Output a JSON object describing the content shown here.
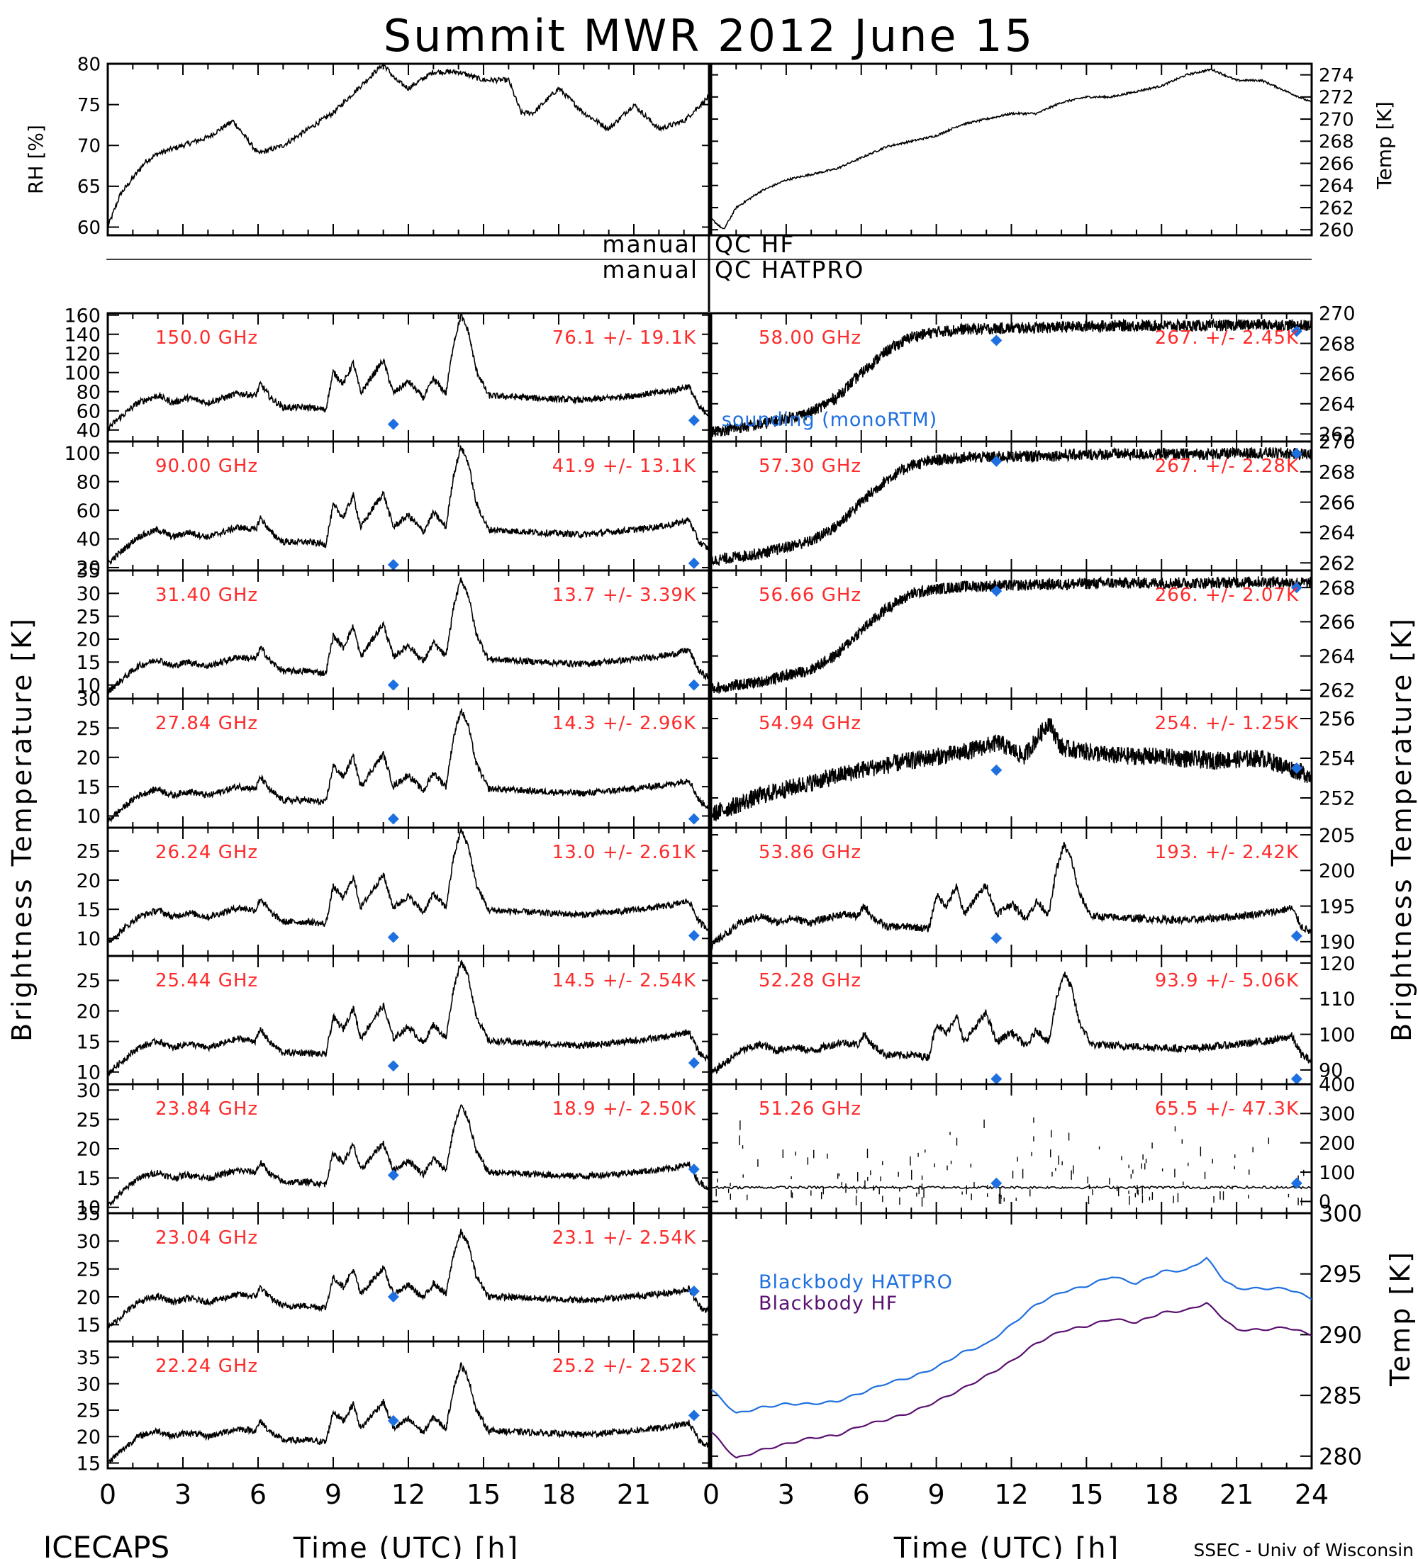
{
  "title": "Summit MWR 2012 June 15",
  "footer": {
    "left": "ICECAPS",
    "right": "SSEC - Univ of Wisconsin"
  },
  "labels": {
    "rh_axis": "RH [%]",
    "temp_axis": "Temp [K]",
    "tb_axis": "Brightness Temperature [K]",
    "tb_axis_right": "Brightness Temperature [K]",
    "bb_axis": "Temp [K]",
    "time_axis": "Time (UTC) [h]",
    "qc_hf_left": "manual",
    "qc_hf_right": "QC HF",
    "qc_hat_left": "manual",
    "qc_hat_right": "QC HATPRO",
    "sounding": "sounding (monoRTM)",
    "bb_hatpro": "Blackbody HATPRO",
    "bb_hf": "Blackbody HF"
  },
  "colors": {
    "stats": "#ff2a2a",
    "sounding": "#1e6fe0",
    "bb_hatpro": "#1e6fe0",
    "bb_hf": "#5a1070",
    "trace": "#000000"
  },
  "chart_data": [
    {
      "type": "line",
      "panel": "rh",
      "ylabel": "RH [%]",
      "ylim": [
        59,
        80
      ],
      "yticks": [
        60,
        65,
        70,
        75,
        80
      ],
      "xlim": [
        0,
        24
      ],
      "x": [
        0,
        0.5,
        1,
        1.5,
        2,
        3,
        4,
        5,
        5.5,
        6,
        7,
        8,
        9,
        10,
        11,
        11.5,
        12,
        13,
        14,
        15,
        16,
        16.5,
        17,
        18,
        19,
        20,
        21,
        22,
        23,
        24
      ],
      "y": [
        60,
        64,
        66,
        68,
        69,
        70,
        71,
        73,
        71,
        69,
        70,
        72,
        74,
        77,
        80,
        78,
        77,
        79,
        79,
        78,
        78,
        74,
        74,
        77,
        74,
        72,
        75,
        72,
        73,
        76
      ]
    },
    {
      "type": "line",
      "panel": "temp",
      "ylabel": "Temp [K]",
      "ylim": [
        259.5,
        275
      ],
      "yticks": [
        260,
        262,
        264,
        266,
        268,
        270,
        272,
        274
      ],
      "xlim": [
        0,
        24
      ],
      "x": [
        0,
        0.5,
        1,
        2,
        3,
        4,
        5,
        6,
        7,
        8,
        9,
        10,
        11,
        12,
        13,
        14,
        15,
        16,
        17,
        18,
        19,
        20,
        21,
        22,
        23,
        24
      ],
      "y": [
        261,
        260,
        262,
        263.5,
        264.5,
        265,
        265.5,
        266.5,
        267.5,
        268,
        268.5,
        269.5,
        270,
        270.5,
        270.5,
        271.5,
        272,
        272,
        272.5,
        273,
        274,
        274.5,
        273.5,
        273.5,
        272.5,
        271.5
      ]
    },
    {
      "type": "line",
      "channel": "150.0 GHz",
      "stats": "76.1 +/-  19.1K",
      "ylim": [
        28,
        162
      ],
      "yticks": [
        40,
        60,
        80,
        100,
        120,
        140,
        160
      ],
      "sounding": [
        [
          11.4,
          46
        ],
        [
          23.4,
          50
        ]
      ]
    },
    {
      "type": "line",
      "channel": "90.00 GHz",
      "stats": "41.9 +/-  13.1K",
      "ylim": [
        18,
        108
      ],
      "yticks": [
        20,
        40,
        60,
        80,
        100
      ],
      "sounding": [
        [
          11.4,
          22
        ],
        [
          23.4,
          23
        ]
      ]
    },
    {
      "type": "line",
      "channel": "31.40 GHz",
      "stats": "13.7 +/- 3.39K",
      "ylim": [
        7,
        35
      ],
      "yticks": [
        10,
        15,
        20,
        25,
        30,
        35
      ],
      "sounding": [
        [
          11.4,
          10
        ],
        [
          23.4,
          10
        ]
      ]
    },
    {
      "type": "line",
      "channel": "27.84 GHz",
      "stats": "14.3 +/- 2.96K",
      "ylim": [
        8,
        30
      ],
      "yticks": [
        10,
        15,
        20,
        25,
        30
      ],
      "sounding": [
        [
          11.4,
          9.5
        ],
        [
          23.4,
          9.5
        ]
      ]
    },
    {
      "type": "line",
      "channel": "26.24 GHz",
      "stats": "13.0 +/- 2.61K",
      "ylim": [
        7,
        29
      ],
      "yticks": [
        10,
        15,
        20,
        25
      ],
      "sounding": [
        [
          11.4,
          10.2
        ],
        [
          23.4,
          10.5
        ]
      ]
    },
    {
      "type": "line",
      "channel": "25.44 GHz",
      "stats": "14.5 +/- 2.54K",
      "ylim": [
        8,
        29
      ],
      "yticks": [
        10,
        15,
        20,
        25
      ],
      "sounding": [
        [
          11.4,
          11
        ],
        [
          23.4,
          11.5
        ]
      ]
    },
    {
      "type": "line",
      "channel": "23.84 GHz",
      "stats": "18.9 +/- 2.50K",
      "ylim": [
        9,
        31
      ],
      "yticks": [
        10,
        15,
        20,
        25,
        30
      ],
      "sounding": [
        [
          11.4,
          15.5
        ],
        [
          23.4,
          16.5
        ]
      ]
    },
    {
      "type": "line",
      "channel": "23.04 GHz",
      "stats": "23.1 +/- 2.54K",
      "ylim": [
        12,
        35
      ],
      "yticks": [
        15,
        20,
        25,
        30,
        35
      ],
      "sounding": [
        [
          11.4,
          20
        ],
        [
          23.4,
          21
        ]
      ]
    },
    {
      "type": "line",
      "channel": "22.24 GHz",
      "stats": "25.2 +/- 2.52K",
      "ylim": [
        14,
        38
      ],
      "yticks": [
        15,
        20,
        25,
        30,
        35
      ],
      "sounding": [
        [
          11.4,
          23
        ],
        [
          23.4,
          24
        ]
      ]
    },
    {
      "type": "line",
      "channel": "58.00 GHz",
      "stats": "267. +/- 2.45K",
      "ylim": [
        261.5,
        270
      ],
      "yticks": [
        262,
        264,
        266,
        268,
        270
      ],
      "sounding": [
        [
          11.4,
          268.2
        ],
        [
          23.4,
          268.8
        ]
      ]
    },
    {
      "type": "line",
      "channel": "57.30 GHz",
      "stats": "267. +/- 2.28K",
      "ylim": [
        261.5,
        270
      ],
      "yticks": [
        262,
        264,
        266,
        268,
        270
      ],
      "sounding": [
        [
          11.4,
          268.7
        ],
        [
          23.4,
          269.2
        ]
      ]
    },
    {
      "type": "line",
      "channel": "56.66 GHz",
      "stats": "266. +/- 2.07K",
      "ylim": [
        261.5,
        269
      ],
      "yticks": [
        262,
        264,
        266,
        268
      ],
      "sounding": [
        [
          11.4,
          267.8
        ],
        [
          23.4,
          268
        ]
      ]
    },
    {
      "type": "line",
      "channel": "54.94 GHz",
      "stats": "254. +/- 1.25K",
      "ylim": [
        250.5,
        257
      ],
      "yticks": [
        252,
        254,
        256
      ],
      "sounding": [
        [
          11.4,
          253.4
        ],
        [
          23.4,
          253.5
        ]
      ]
    },
    {
      "type": "line",
      "channel": "53.86 GHz",
      "stats": "193. +/- 2.42K",
      "ylim": [
        188,
        206
      ],
      "yticks": [
        190,
        195,
        200,
        205
      ],
      "sounding": [
        [
          11.4,
          190.5
        ],
        [
          23.4,
          190.8
        ]
      ]
    },
    {
      "type": "line",
      "channel": "52.28 GHz",
      "stats": "93.9 +/- 5.06K",
      "ylim": [
        86,
        122
      ],
      "yticks": [
        90,
        100,
        110,
        120
      ],
      "sounding": [
        [
          11.4,
          87.5
        ],
        [
          23.4,
          87.5
        ]
      ]
    },
    {
      "type": "line",
      "channel": "51.26 GHz",
      "stats": "65.5 +/- 47.3K",
      "ylim": [
        -40,
        400
      ],
      "yticks": [
        0,
        100,
        200,
        300,
        400
      ],
      "sounding": [
        [
          11.4,
          62
        ],
        [
          23.4,
          62
        ]
      ]
    },
    {
      "type": "line",
      "panel": "blackbody",
      "ylabel": "Temp [K]",
      "ylim": [
        279,
        300
      ],
      "yticks": [
        280,
        285,
        290,
        295,
        300
      ],
      "xlim": [
        0,
        24
      ],
      "series": [
        {
          "name": "Blackbody HATPRO",
          "x": [
            0,
            1,
            2,
            3,
            4,
            5,
            6,
            7,
            8,
            9,
            10,
            11,
            12,
            13,
            14,
            15,
            16,
            17,
            18,
            19,
            19.8,
            20.5,
            21,
            22,
            23,
            24
          ],
          "y": [
            285.5,
            283.5,
            284,
            284.3,
            284.3,
            284.5,
            285.2,
            286,
            286.5,
            287.3,
            288.5,
            289.2,
            290.8,
            292.5,
            293.5,
            294,
            294.8,
            294.2,
            295.2,
            295.3,
            296.3,
            294.5,
            293.8,
            293.8,
            293.8,
            293
          ]
        },
        {
          "name": "Blackbody HF",
          "x": [
            0,
            1,
            2,
            3,
            4,
            5,
            6,
            7,
            8,
            9,
            10,
            11,
            12,
            13,
            14,
            15,
            16,
            17,
            18,
            19,
            19.8,
            20.5,
            21,
            22,
            23,
            24
          ],
          "y": [
            282,
            279.8,
            280.5,
            281,
            281.5,
            281.7,
            282.5,
            283,
            283.6,
            284.5,
            285.5,
            286.6,
            287.8,
            289.3,
            290.3,
            290.7,
            291.3,
            291,
            291.8,
            292,
            292.6,
            291.3,
            290.4,
            290.4,
            290.6,
            290
          ]
        }
      ]
    }
  ]
}
